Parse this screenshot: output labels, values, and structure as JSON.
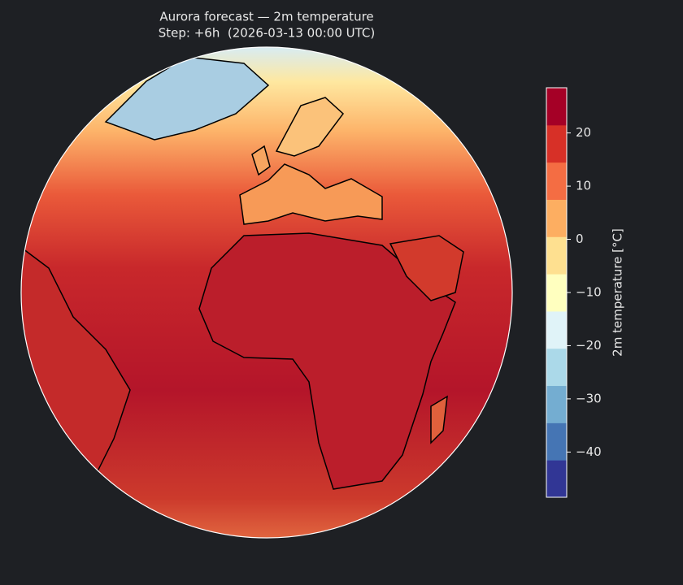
{
  "chart_data": {
    "type": "map",
    "title": "Aurora forecast — 2m temperature",
    "subtitle": "Step: +6h  (2026-03-13 00:00 UTC)",
    "colorbar": {
      "label": "2m temperature [°C]",
      "clim": [
        -48.5,
        28.5
      ],
      "ticks": [
        20,
        10,
        0,
        {
          "value": -10,
          "label": "−10"
        },
        {
          "value": -20,
          "label": "−20"
        },
        {
          "value": -30,
          "label": "−30"
        },
        {
          "value": -40,
          "label": "−40"
        }
      ],
      "colors": [
        "#313695",
        "#4575b4",
        "#74add1",
        "#abd9e9",
        "#e0f3f8",
        "#ffffbf",
        "#fee090",
        "#fdae61",
        "#f46d43",
        "#d73027",
        "#a50026"
      ]
    }
  }
}
